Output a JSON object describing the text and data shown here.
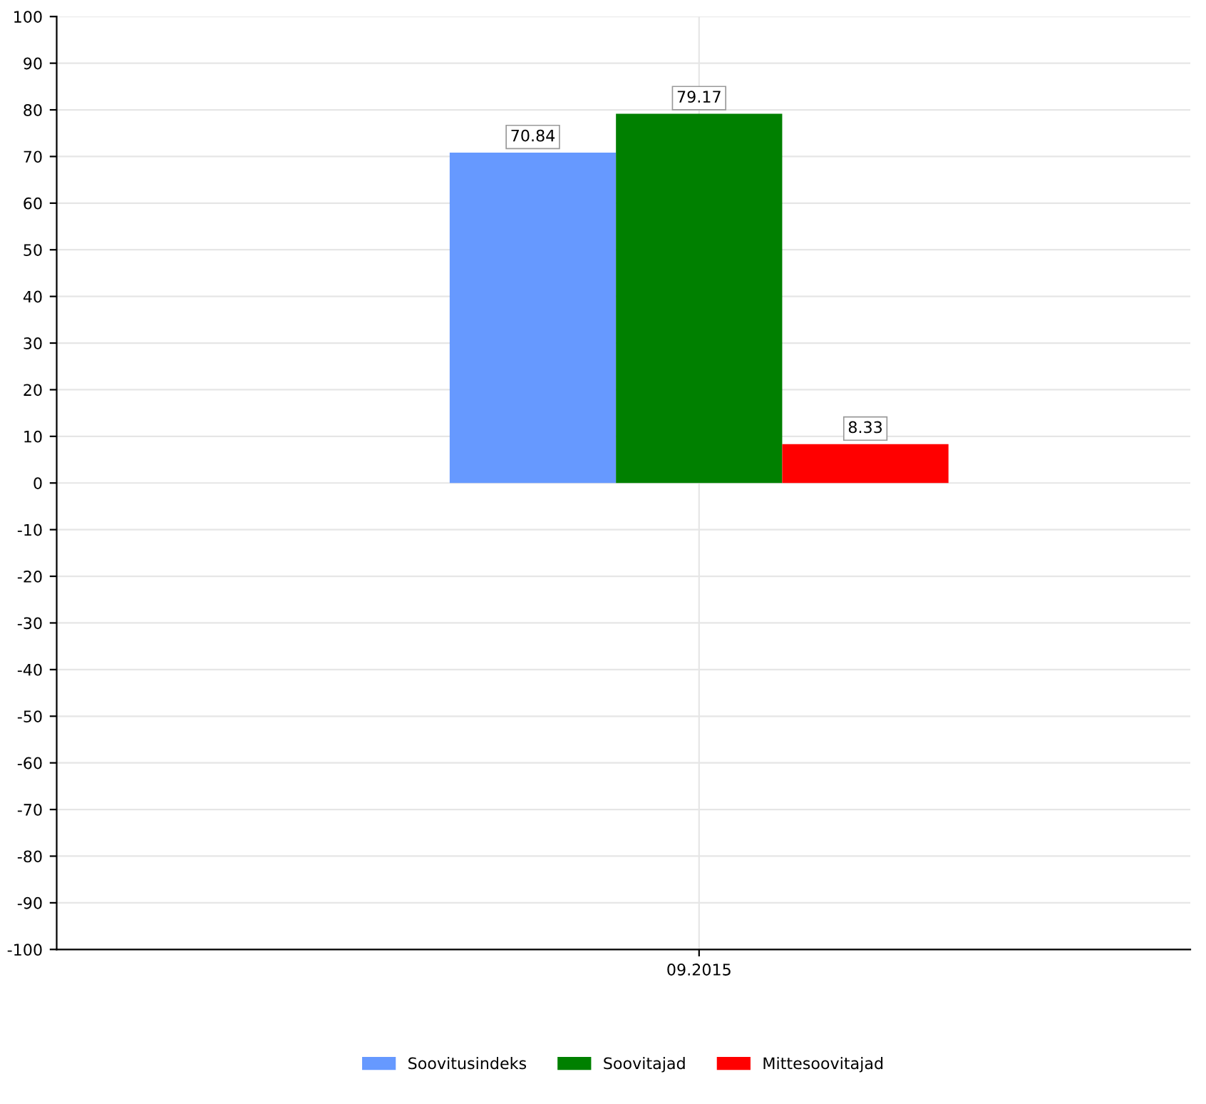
{
  "chart_data": {
    "type": "bar",
    "categories": [
      "09.2015"
    ],
    "series": [
      {
        "name": "Soovitusindeks",
        "color": "#6699ff",
        "values": [
          70.84
        ]
      },
      {
        "name": "Soovitajad",
        "color": "#008000",
        "values": [
          79.17
        ]
      },
      {
        "name": "Mittesoovitajad",
        "color": "#ff0000",
        "values": [
          8.33
        ]
      }
    ],
    "ylim": [
      -100,
      100
    ],
    "yticks": [
      -100,
      -90,
      -80,
      -70,
      -60,
      -50,
      -40,
      -30,
      -20,
      -10,
      0,
      10,
      20,
      30,
      40,
      50,
      60,
      70,
      80,
      90,
      100
    ],
    "grid": true,
    "legend": "bottom",
    "data_labels": true
  }
}
